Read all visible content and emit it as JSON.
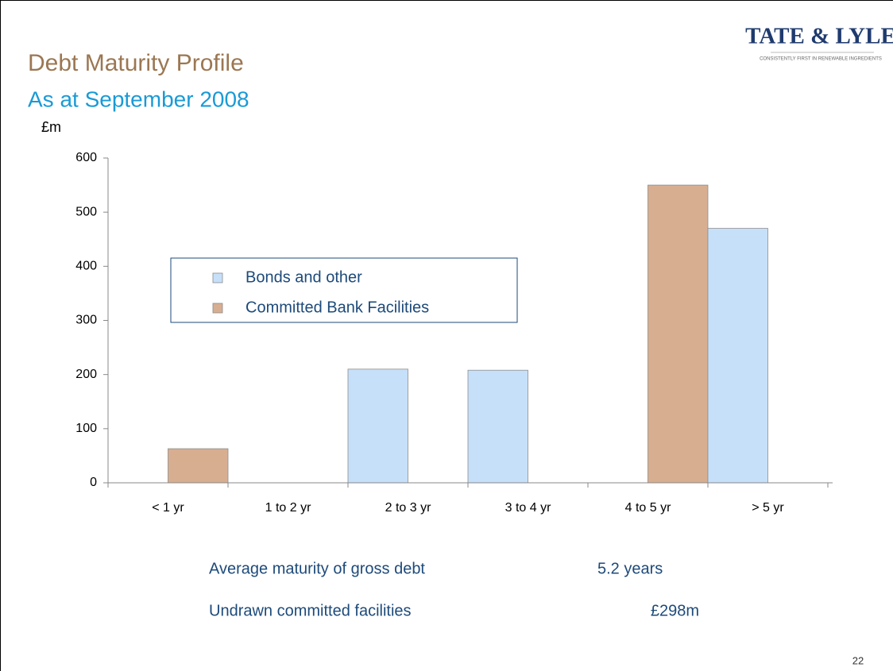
{
  "logo": {
    "name": "TATE & LYLE",
    "tagline": "CONSISTENTLY FIRST IN RENEWABLE INGREDIENTS"
  },
  "chart_data": {
    "type": "bar",
    "title": "Debt Maturity Profile",
    "subtitle": "As at September 2008",
    "y_label": "£m",
    "categories": [
      "< 1 yr",
      "1 to 2 yr",
      "2 to 3 yr",
      "3 to 4 yr",
      "4 to 5 yr",
      "> 5 yr"
    ],
    "series": [
      {
        "name": "Bonds and other",
        "color": "#c6e0fa",
        "values": [
          0,
          0,
          210,
          208,
          0,
          470
        ]
      },
      {
        "name": "Committed Bank Facilities",
        "color": "#d8ae91",
        "values": [
          63,
          0,
          0,
          0,
          550,
          0
        ]
      }
    ],
    "ylim": [
      0,
      600
    ],
    "yticks": [
      0,
      100,
      200,
      300,
      400,
      500,
      600
    ],
    "grid": false,
    "legend": "upper left"
  },
  "notes": [
    {
      "label": "Average maturity of gross debt",
      "value": "5.2 years"
    },
    {
      "label": "Undrawn committed facilities",
      "value": "£298m"
    }
  ],
  "page_number": "22"
}
